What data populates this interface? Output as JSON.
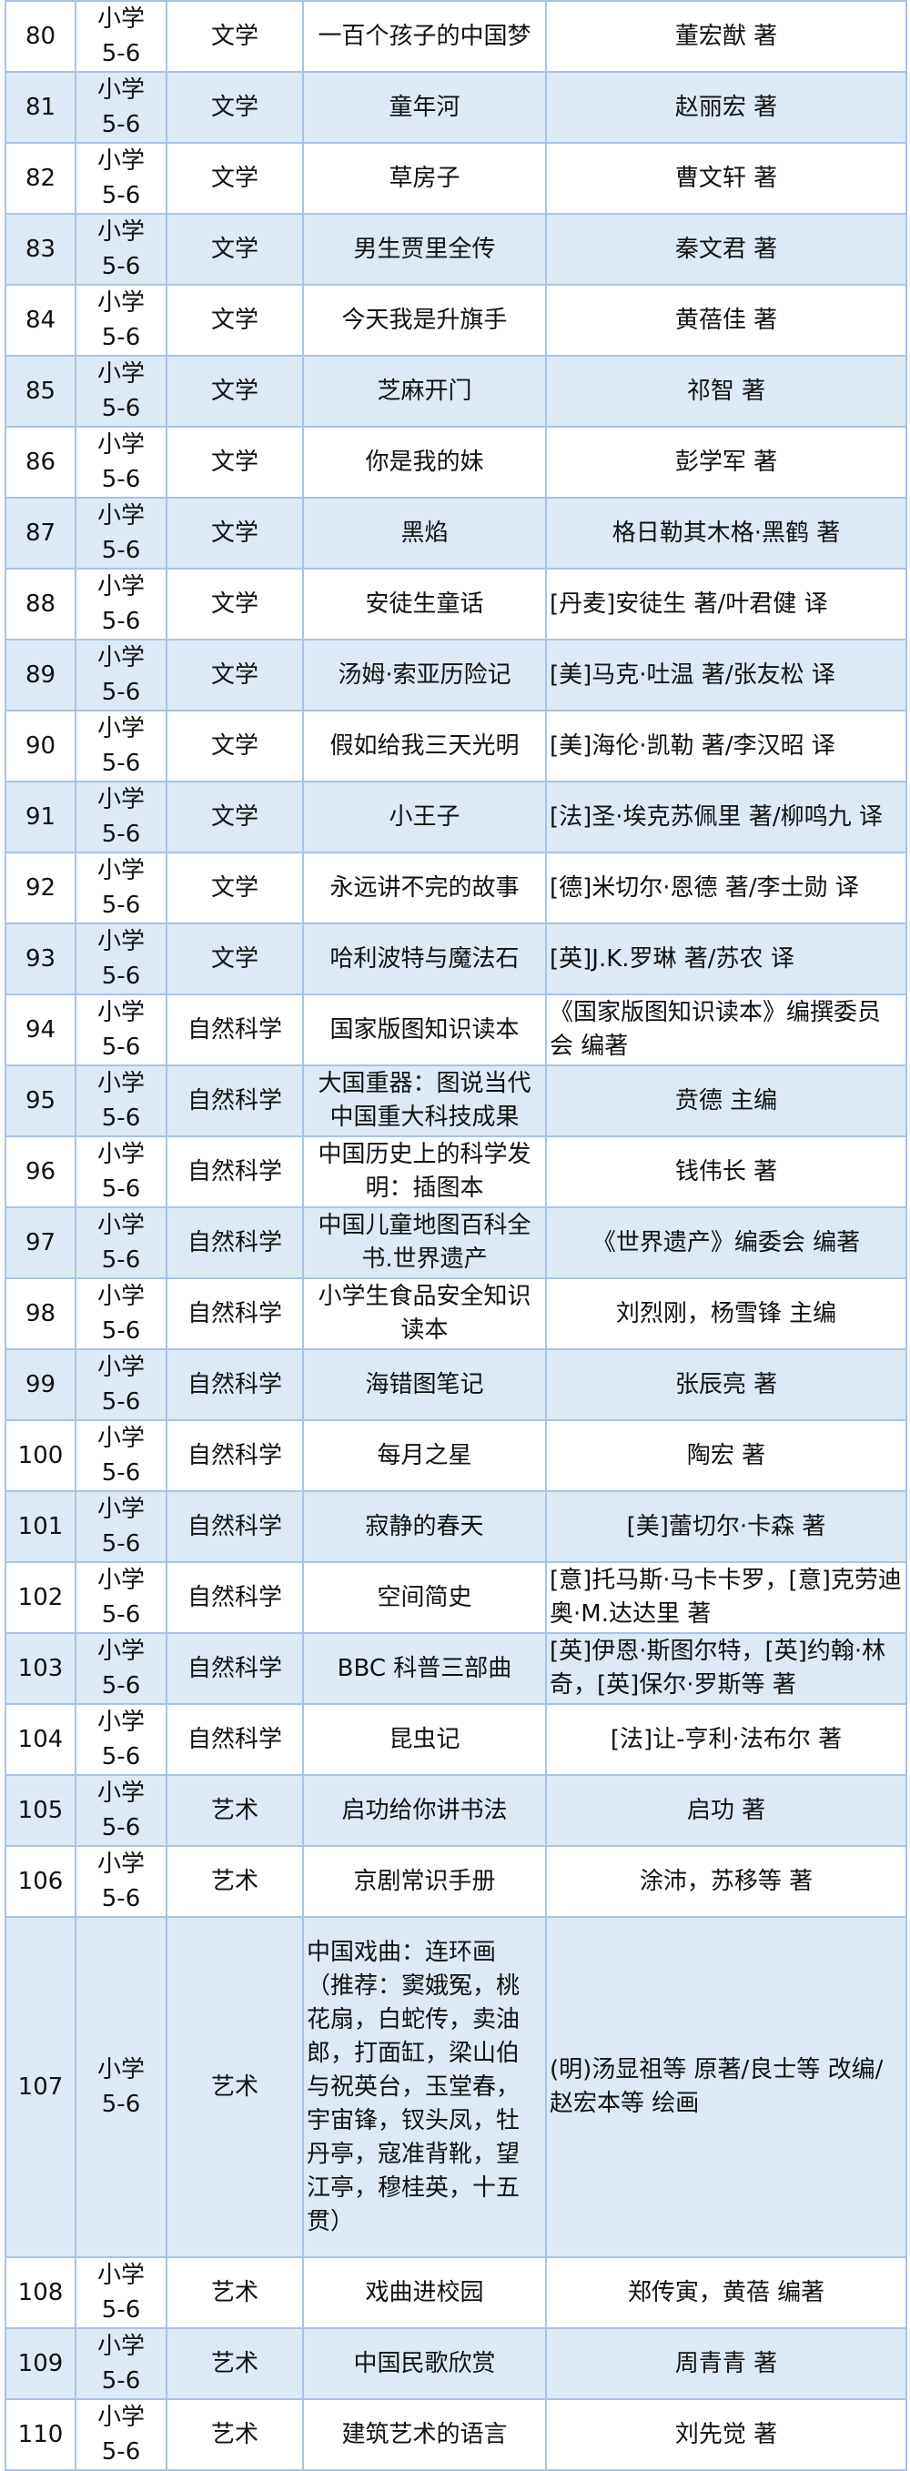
{
  "rows": [
    {
      "no": "80",
      "grade": [
        "小学",
        "5-6"
      ],
      "category": "文学",
      "title": "一百个孩子的中国梦",
      "author": "董宏猷 著"
    },
    {
      "no": "81",
      "grade": [
        "小学",
        "5-6"
      ],
      "category": "文学",
      "title": "童年河",
      "author": "赵丽宏 著"
    },
    {
      "no": "82",
      "grade": [
        "小学",
        "5-6"
      ],
      "category": "文学",
      "title": "草房子",
      "author": "曹文轩 著"
    },
    {
      "no": "83",
      "grade": [
        "小学",
        "5-6"
      ],
      "category": "文学",
      "title": "男生贾里全传",
      "author": "秦文君 著"
    },
    {
      "no": "84",
      "grade": [
        "小学",
        "5-6"
      ],
      "category": "文学",
      "title": "今天我是升旗手",
      "author": "黄蓓佳 著"
    },
    {
      "no": "85",
      "grade": [
        "小学",
        "5-6"
      ],
      "category": "文学",
      "title": "芝麻开门",
      "author": "祁智 著"
    },
    {
      "no": "86",
      "grade": [
        "小学",
        "5-6"
      ],
      "category": "文学",
      "title": "你是我的妹",
      "author": "彭学军 著"
    },
    {
      "no": "87",
      "grade": [
        "小学",
        "5-6"
      ],
      "category": "文学",
      "title": "黑焰",
      "author": "格日勒其木格·黑鹤 著"
    },
    {
      "no": "88",
      "grade": [
        "小学",
        "5-6"
      ],
      "category": "文学",
      "title": "安徒生童话",
      "author": "[丹麦]安徒生 著/叶君健 译"
    },
    {
      "no": "89",
      "grade": [
        "小学",
        "5-6"
      ],
      "category": "文学",
      "title": "汤姆·索亚历险记",
      "author": "[美]马克·吐温 著/张友松 译"
    },
    {
      "no": "90",
      "grade": [
        "小学",
        "5-6"
      ],
      "category": "文学",
      "title": "假如给我三天光明",
      "author": "[美]海伦·凯勒 著/李汉昭 译"
    },
    {
      "no": "91",
      "grade": [
        "小学",
        "5-6"
      ],
      "category": "文学",
      "title": "小王子",
      "author": "[法]圣·埃克苏佩里 著/柳鸣九 译"
    },
    {
      "no": "92",
      "grade": [
        "小学",
        "5-6"
      ],
      "category": "文学",
      "title": "永远讲不完的故事",
      "author": "[德]米切尔·恩德 著/李士勋 译"
    },
    {
      "no": "93",
      "grade": [
        "小学",
        "5-6"
      ],
      "category": "文学",
      "title": "哈利波特与魔法石",
      "author": "[英]J.K.罗琳 著/苏农 译"
    },
    {
      "no": "94",
      "grade": [
        "小学",
        "5-6"
      ],
      "category": "自然科学",
      "title": "国家版图知识读本",
      "author": "《国家版图知识读本》编撰委员会 编著"
    },
    {
      "no": "95",
      "grade": [
        "小学",
        "5-6"
      ],
      "category": "自然科学",
      "title": "大国重器：图说当代中国重大科技成果",
      "author": "贲德 主编"
    },
    {
      "no": "96",
      "grade": [
        "小学",
        "5-6"
      ],
      "category": "自然科学",
      "title": "中国历史上的科学发明：插图本",
      "author": "钱伟长 著"
    },
    {
      "no": "97",
      "grade": [
        "小学",
        "5-6"
      ],
      "category": "自然科学",
      "title": "中国儿童地图百科全书.世界遗产",
      "author": "《世界遗产》编委会 编著"
    },
    {
      "no": "98",
      "grade": [
        "小学",
        "5-6"
      ],
      "category": "自然科学",
      "title": "小学生食品安全知识读本",
      "author": "刘烈刚，杨雪锋 主编"
    },
    {
      "no": "99",
      "grade": [
        "小学",
        "5-6"
      ],
      "category": "自然科学",
      "title": "海错图笔记",
      "author": "张辰亮 著"
    },
    {
      "no": "100",
      "grade": [
        "小学",
        "5-6"
      ],
      "category": "自然科学",
      "title": "每月之星",
      "author": "陶宏 著"
    },
    {
      "no": "101",
      "grade": [
        "小学",
        "5-6"
      ],
      "category": "自然科学",
      "title": "寂静的春天",
      "author": "[美]蕾切尔·卡森 著"
    },
    {
      "no": "102",
      "grade": [
        "小学",
        "5-6"
      ],
      "category": "自然科学",
      "title": "空间简史",
      "author": "[意]托马斯·马卡卡罗，[意]克劳迪奥·M.达达里 著"
    },
    {
      "no": "103",
      "grade": [
        "小学",
        "5-6"
      ],
      "category": "自然科学",
      "title": "BBC 科普三部曲",
      "author": "[英]伊恩·斯图尔特，[英]约翰·林奇，[英]保尔·罗斯等 著"
    },
    {
      "no": "104",
      "grade": [
        "小学",
        "5-6"
      ],
      "category": "自然科学",
      "title": "昆虫记",
      "author": "[法]让-亨利·法布尔 著"
    },
    {
      "no": "105",
      "grade": [
        "小学",
        "5-6"
      ],
      "category": "艺术",
      "title": "启功给你讲书法",
      "author": "启功 著"
    },
    {
      "no": "106",
      "grade": [
        "小学",
        "5-6"
      ],
      "category": "艺术",
      "title": "京剧常识手册",
      "author": "涂沛，苏移等 著"
    },
    {
      "no": "107",
      "grade": [
        "小学",
        "5-6"
      ],
      "category": "艺术",
      "title": "中国戏曲：连环画（推荐：窦娥冤，桃花扇，白蛇传，卖油郎，打面缸，梁山伯与祝英台，玉堂春，宇宙锋，钗头凤，牡丹亭，寇准背靴，望江亭，穆桂英，十五贯）",
      "author": "(明)汤显祖等 原著/良士等 改编/赵宏本等 绘画"
    },
    {
      "no": "108",
      "grade": [
        "小学",
        "5-6"
      ],
      "category": "艺术",
      "title": "戏曲进校园",
      "author": "郑传寅，黄蓓 编著"
    },
    {
      "no": "109",
      "grade": [
        "小学",
        "5-6"
      ],
      "category": "艺术",
      "title": "中国民歌欣赏",
      "author": "周青青 著"
    },
    {
      "no": "110",
      "grade": [
        "小学",
        "5-6"
      ],
      "category": "艺术",
      "title": "建筑艺术的语言",
      "author": "刘先觉 著"
    }
  ],
  "colors": {
    "row_alt": "#ddeaf6",
    "border": "#a9c3e3"
  }
}
